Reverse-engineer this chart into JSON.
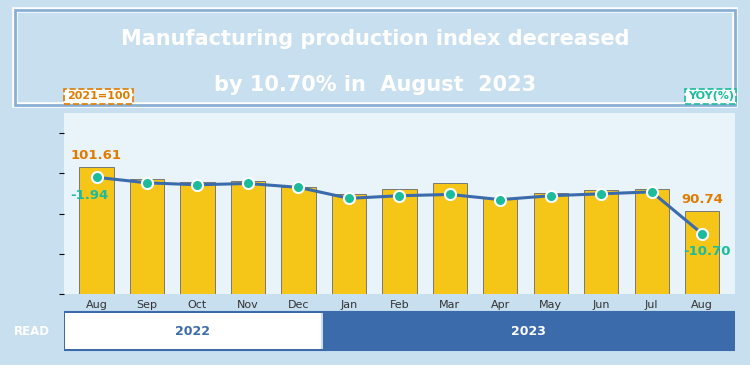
{
  "title_line1": "Manufacturing production index decreased",
  "title_line2": "by 10.70% in  August  2023",
  "title_bg_color": "#3B6BAA",
  "title_text_color": "#FFFFFF",
  "chart_bg_color": "#C8DFF0",
  "plot_bg_color": "#E8F4FA",
  "categories": [
    "Aug",
    "Sep",
    "Oct",
    "Nov",
    "Dec",
    "Jan",
    "Feb",
    "Mar",
    "Apr",
    "May",
    "Jun",
    "Jul",
    "Aug"
  ],
  "bar_values": [
    101.61,
    98.5,
    97.8,
    98.2,
    96.5,
    94.8,
    96.2,
    97.5,
    93.8,
    95.2,
    95.8,
    96.1,
    90.74
  ],
  "yoy_values": [
    -1.94,
    -2.8,
    -3.1,
    -2.9,
    -3.5,
    -5.2,
    -4.8,
    -4.6,
    -5.4,
    -4.8,
    -4.5,
    -4.2,
    -10.7
  ],
  "bar_color": "#F5C518",
  "bar_edge_color": "#777777",
  "line_color": "#3B6BAA",
  "dot_color": "#1ABC9C",
  "label_2021": "2021=100",
  "label_yoy": "YOY(%)",
  "year_bar_2022_color": "#FFFFFF",
  "year_bar_2023_color": "#3B6BAA",
  "year_text_color_2022": "#3B6BAA",
  "year_text_color_2023": "#FFFFFF",
  "read_bg_color": "#3B6BAA",
  "read_text_color": "#FFFFFF",
  "first_bar_label_color": "#E07B00",
  "last_bar_label_color": "#E07B00",
  "first_yoy_label_color": "#1ABC9C",
  "last_yoy_label_color": "#1ABC9C",
  "n_2022": 5,
  "n_2023": 8
}
